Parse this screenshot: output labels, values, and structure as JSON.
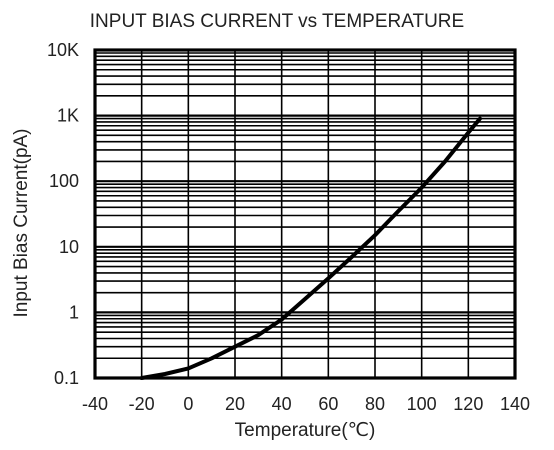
{
  "chart_data": {
    "type": "line",
    "title": "INPUT BIAS CURRENT vs TEMPERATURE",
    "xlabel": "Temperature(℃)",
    "ylabel": "Input Bias Current(pA)",
    "x_ticks": [
      -40,
      -20,
      0,
      20,
      40,
      60,
      80,
      100,
      120,
      140
    ],
    "xlim": [
      -40,
      140
    ],
    "y_scale": "log",
    "ylim": [
      0.1,
      10000
    ],
    "y_ticks": [
      0.1,
      1,
      10,
      100,
      1000,
      10000
    ],
    "y_tick_labels": [
      "0.1",
      "1",
      "10",
      "100",
      "1K",
      "10K"
    ],
    "grid": true,
    "line_color": "#000000",
    "series": [
      {
        "x": [
          -20,
          -10,
          0,
          10,
          20,
          30,
          40,
          50,
          60,
          70,
          80,
          90,
          100,
          110,
          120,
          125
        ],
        "y": [
          0.1,
          0.115,
          0.14,
          0.2,
          0.3,
          0.45,
          0.78,
          1.6,
          3.3,
          7,
          15,
          35,
          80,
          200,
          550,
          900
        ]
      }
    ]
  }
}
